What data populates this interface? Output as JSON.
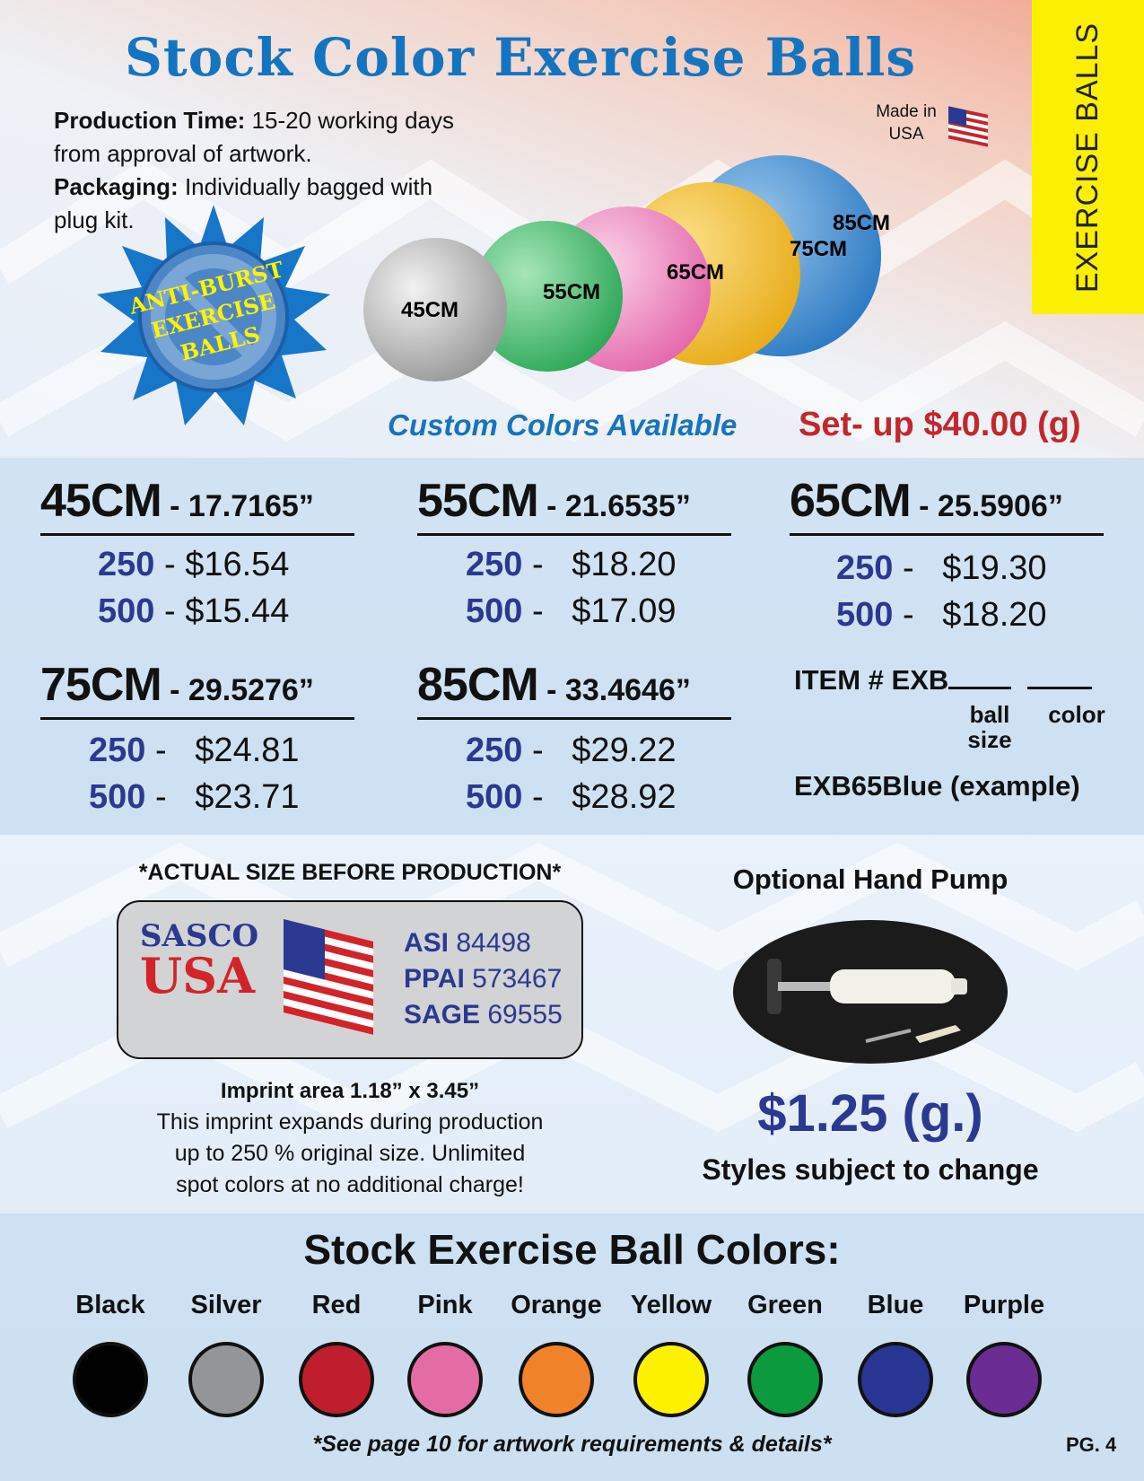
{
  "side_tab": "EXERCISE BALLS",
  "title": "Stock Color Exercise Balls",
  "info": {
    "production_label": "Production Time:",
    "production_text_1": "15-20 working days",
    "production_text_2": "from approval of artwork.",
    "packaging_label": "Packaging:",
    "packaging_text_1": "Individually bagged with",
    "packaging_text_2": "plug kit."
  },
  "made_in": {
    "line1": "Made in",
    "line2": "USA"
  },
  "badge": {
    "line1": "ANTI-BURST",
    "line2": "EXERCISE",
    "line3": "BALLS"
  },
  "balls": [
    {
      "label": "45CM",
      "color": "#c9c9c9"
    },
    {
      "label": "55CM",
      "color": "#5bc47a"
    },
    {
      "label": "65CM",
      "color": "#ef8cc0"
    },
    {
      "label": "75CM",
      "color": "#f6c63a"
    },
    {
      "label": "85CM",
      "color": "#4a95d6"
    }
  ],
  "custom_colors": "Custom Colors Available",
  "setup": "Set- up $40.00 (g)",
  "sizes": [
    {
      "cm": "45CM",
      "inches": " - 17.7165”",
      "rows": [
        {
          "qty": "250",
          "sep": " - ",
          "price": "$16.54"
        },
        {
          "qty": "500",
          "sep": " - ",
          "price": "$15.44"
        }
      ]
    },
    {
      "cm": "55CM",
      "inches": " - 21.6535”",
      "rows": [
        {
          "qty": "250",
          "sep": " -   ",
          "price": "$18.20"
        },
        {
          "qty": "500",
          "sep": " -   ",
          "price": "$17.09"
        }
      ]
    },
    {
      "cm": "65CM",
      "inches": " - 25.5906”",
      "rows": [
        {
          "qty": "250",
          "sep": " -   ",
          "price": "$19.30"
        },
        {
          "qty": "500",
          "sep": " -   ",
          "price": "$18.20"
        }
      ]
    },
    {
      "cm": "75CM",
      "inches": " - 29.5276”",
      "rows": [
        {
          "qty": "250",
          "sep": " -   ",
          "price": "$24.81"
        },
        {
          "qty": "500",
          "sep": " -   ",
          "price": "$23.71"
        }
      ]
    },
    {
      "cm": "85CM",
      "inches": " - 33.4646”",
      "rows": [
        {
          "qty": "250",
          "sep": " -   ",
          "price": "$29.22"
        },
        {
          "qty": "500",
          "sep": " -   ",
          "price": "$28.92"
        }
      ]
    }
  ],
  "item": {
    "prefix": "ITEM # EXB",
    "ball_size_1": "ball",
    "ball_size_2": "size",
    "color": "color",
    "example": "EXB65Blue (example)"
  },
  "imprint_section": {
    "actual_size": "*ACTUAL SIZE BEFORE PRODUCTION*",
    "logo_sasco": "SASCO",
    "logo_usa": "USA",
    "asi_label": "ASI",
    "asi_value": "84498",
    "ppai_label": "PPAI",
    "ppai_value": "573467",
    "sage_label": "SAGE",
    "sage_value": "69555",
    "imprint_title": "Imprint area 1.18” x 3.45”",
    "line1": "This imprint expands during production",
    "line2": "up to 250 % original size. Unlimited",
    "line3": "spot colors at no additional charge!"
  },
  "pump": {
    "title": "Optional Hand Pump",
    "price": "$1.25 (g.)",
    "note": "Styles subject to change"
  },
  "stock_colors": {
    "title": "Stock Exercise Ball Colors:",
    "items": [
      {
        "name": "Black",
        "hex": "#000000"
      },
      {
        "name": "Silver",
        "hex": "#939598"
      },
      {
        "name": "Red",
        "hex": "#be1e2d"
      },
      {
        "name": "Pink",
        "hex": "#e46ca5"
      },
      {
        "name": "Orange",
        "hex": "#f0822a"
      },
      {
        "name": "Yellow",
        "hex": "#fff200"
      },
      {
        "name": "Green",
        "hex": "#0b9a3e"
      },
      {
        "name": "Blue",
        "hex": "#283593"
      },
      {
        "name": "Purple",
        "hex": "#6a2c91"
      }
    ]
  },
  "footnote": "*See page 10 for artwork requirements & details*",
  "page_number": "PG. 4",
  "colors": {
    "title_blue": "#1574bf",
    "accent_red": "#c1272d",
    "price_blue": "#2b3990",
    "tab_yellow": "#fbf000"
  }
}
